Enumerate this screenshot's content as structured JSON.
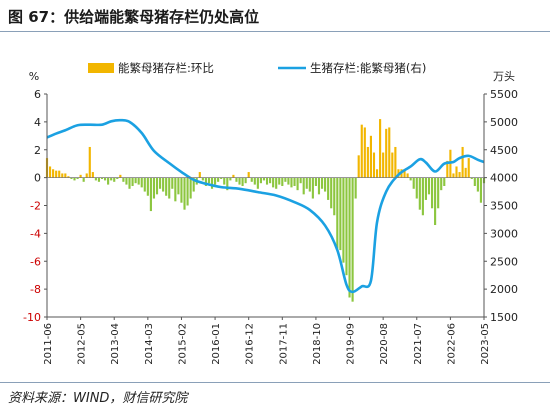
{
  "figure": {
    "title": "图 67：供给端能繁母猪存栏仍处高位",
    "source": "资料来源：WIND，财信研究院"
  },
  "chart_data": {
    "type": "bar+line",
    "title": "",
    "y_left": {
      "unit": "%",
      "min": -10,
      "max": 6,
      "ticks": [
        6,
        4,
        2,
        0,
        -2,
        -4,
        -6,
        -8,
        -10
      ],
      "color": "#cc0000"
    },
    "y_right": {
      "unit": "万头",
      "min": 1500,
      "max": 5500,
      "ticks": [
        5500,
        5000,
        4500,
        4000,
        3500,
        3000,
        2500,
        2000,
        1500
      ]
    },
    "x_ticks": [
      "2011-06",
      "2012-05",
      "2013-04",
      "2014-03",
      "2015-02",
      "2016-01",
      "2016-12",
      "2017-11",
      "2018-10",
      "2019-09",
      "2020-08",
      "2021-07",
      "2022-06",
      "2023-05"
    ],
    "x_range": [
      "2011-06",
      "2023-05"
    ],
    "legend_position": "top",
    "series": [
      {
        "name": "能繁母猪存栏:环比",
        "type": "bar",
        "axis": "left",
        "positive_color": "#f2b600",
        "negative_color": "#8cc63f",
        "start": "2011-06",
        "values": [
          1.4,
          0.8,
          0.6,
          0.5,
          0.5,
          0.3,
          0.3,
          0.1,
          -0.1,
          -0.2,
          -0.1,
          0.2,
          -0.3,
          0.3,
          2.2,
          0.4,
          -0.2,
          -0.3,
          -0.1,
          -0.2,
          -0.5,
          -0.2,
          -0.3,
          -0.1,
          0.2,
          -0.3,
          -0.5,
          -0.8,
          -0.6,
          -0.4,
          -0.5,
          -0.7,
          -1.0,
          -1.3,
          -2.4,
          -1.5,
          -1.2,
          -0.8,
          -1.0,
          -1.3,
          -1.5,
          -0.8,
          -1.7,
          -1.2,
          -1.8,
          -2.3,
          -2.0,
          -1.5,
          -1.0,
          -0.5,
          0.4,
          -0.2,
          -0.6,
          -0.4,
          -0.8,
          -0.5,
          -0.3,
          -0.1,
          -0.5,
          -0.9,
          -0.2,
          0.2,
          -0.3,
          -0.5,
          -0.6,
          -0.4,
          0.4,
          -0.3,
          -0.5,
          -0.8,
          -0.4,
          -0.2,
          -0.5,
          -0.4,
          -0.7,
          -0.8,
          -0.5,
          -0.6,
          -0.3,
          -0.5,
          -0.7,
          -0.6,
          -0.9,
          -0.4,
          -1.2,
          -0.8,
          -1.0,
          -1.5,
          -0.6,
          -1.2,
          -0.8,
          -1.0,
          -1.6,
          -2.2,
          -2.7,
          -5.1,
          -5.2,
          -6.1,
          -7.0,
          -8.6,
          -8.9,
          -1.5,
          1.6,
          3.8,
          3.6,
          2.2,
          3.0,
          1.8,
          0.6,
          4.2,
          1.8,
          3.5,
          3.6,
          1.8,
          2.2,
          0.6,
          0.6,
          0.5,
          0.3,
          -0.2,
          -0.8,
          -1.5,
          -2.3,
          -2.7,
          -1.6,
          -1.2,
          -2.2,
          -3.4,
          -2.2,
          -0.9,
          -0.6,
          1.2,
          2.0,
          0.3,
          0.8,
          0.4,
          2.2,
          0.7,
          1.4,
          -0.1,
          -0.6,
          -1.0,
          -1.8,
          -0.4
        ]
      },
      {
        "name": "生猪存栏:能繁母猪(右)",
        "type": "line",
        "axis": "right",
        "color": "#1ba1e2",
        "points": [
          {
            "x": "2011-06",
            "y": 4720
          },
          {
            "x": "2011-09",
            "y": 4790
          },
          {
            "x": "2011-12",
            "y": 4850
          },
          {
            "x": "2012-04",
            "y": 4940
          },
          {
            "x": "2012-08",
            "y": 4950
          },
          {
            "x": "2012-12",
            "y": 4950
          },
          {
            "x": "2013-03",
            "y": 5010
          },
          {
            "x": "2013-06",
            "y": 5030
          },
          {
            "x": "2013-09",
            "y": 5000
          },
          {
            "x": "2014-01",
            "y": 4800
          },
          {
            "x": "2014-05",
            "y": 4480
          },
          {
            "x": "2014-10",
            "y": 4260
          },
          {
            "x": "2015-02",
            "y": 4100
          },
          {
            "x": "2015-06",
            "y": 3960
          },
          {
            "x": "2015-10",
            "y": 3890
          },
          {
            "x": "2016-03",
            "y": 3830
          },
          {
            "x": "2016-09",
            "y": 3800
          },
          {
            "x": "2017-03",
            "y": 3740
          },
          {
            "x": "2017-09",
            "y": 3680
          },
          {
            "x": "2018-03",
            "y": 3560
          },
          {
            "x": "2018-08",
            "y": 3420
          },
          {
            "x": "2019-01",
            "y": 3140
          },
          {
            "x": "2019-05",
            "y": 2700
          },
          {
            "x": "2019-08",
            "y": 2080
          },
          {
            "x": "2019-10",
            "y": 1950
          },
          {
            "x": "2020-01",
            "y": 2050
          },
          {
            "x": "2020-04",
            "y": 2150
          },
          {
            "x": "2020-06",
            "y": 3200
          },
          {
            "x": "2020-09",
            "y": 3750
          },
          {
            "x": "2021-01",
            "y": 4050
          },
          {
            "x": "2021-05",
            "y": 4200
          },
          {
            "x": "2021-08",
            "y": 4330
          },
          {
            "x": "2021-10",
            "y": 4270
          },
          {
            "x": "2022-01",
            "y": 4110
          },
          {
            "x": "2022-04",
            "y": 4250
          },
          {
            "x": "2022-07",
            "y": 4280
          },
          {
            "x": "2022-09",
            "y": 4350
          },
          {
            "x": "2022-12",
            "y": 4390
          },
          {
            "x": "2023-03",
            "y": 4320
          },
          {
            "x": "2023-05",
            "y": 4280
          }
        ]
      }
    ]
  }
}
